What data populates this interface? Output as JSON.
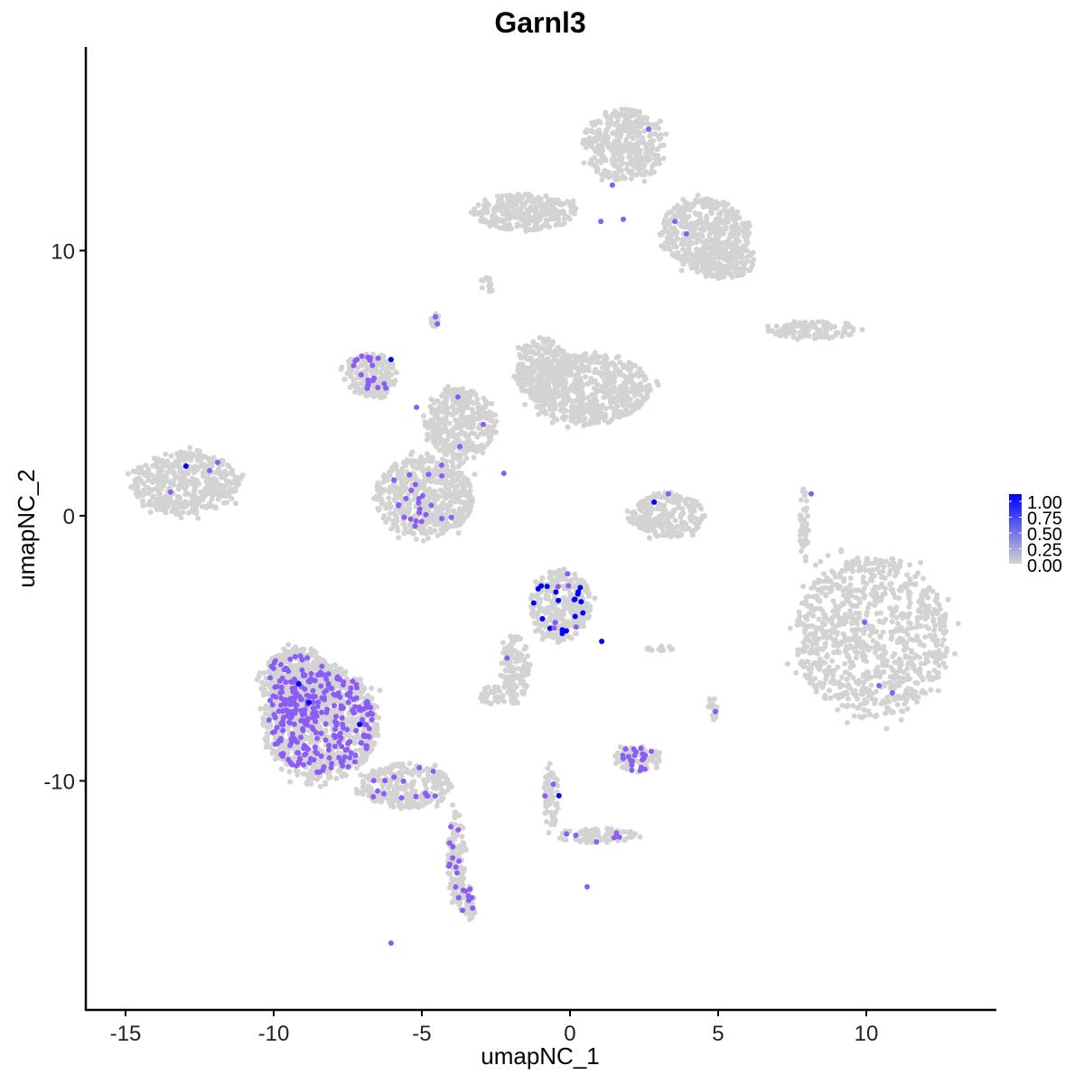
{
  "chart_data": {
    "type": "scatter",
    "title": "Garnl3",
    "xlabel": "umapNC_1",
    "ylabel": "umapNC_2",
    "xlim": [
      -16.34,
      14.39
    ],
    "ylim": [
      -18.64,
      17.68
    ],
    "x_ticks": [
      -15,
      -10,
      -5,
      0,
      5,
      10
    ],
    "x_tick_labels": [
      "-15",
      "-10",
      "-5",
      "0",
      "5",
      "10"
    ],
    "y_ticks": [
      10,
      0,
      -10
    ],
    "y_tick_labels": [
      "10",
      "0",
      "-10"
    ],
    "grid": false,
    "legend": {
      "position": "right",
      "type": "colorbar",
      "labels": [
        "1.00",
        "0.75",
        "0.50",
        "0.25",
        "0.00"
      ],
      "low_color": "#d3d3d3",
      "high_color": "#0000ff"
    },
    "colors": {
      "zero": "#d3d3d3",
      "mid": "#8b5cf6",
      "high": "#0000ff"
    },
    "clusters": [
      {
        "x": 1.8,
        "y": 14.0,
        "sx": 1.37,
        "sy": 1.36,
        "expressed": 0
      },
      {
        "x": -1.55,
        "y": 11.45,
        "sx": 1.83,
        "sy": 0.68,
        "expressed": 0
      },
      {
        "x": 4.54,
        "y": 10.6,
        "sx": 1.52,
        "sy": 1.36,
        "expressed": 0
      },
      {
        "x": 5.15,
        "y": 9.57,
        "sx": 1.07,
        "sy": 0.68,
        "expressed": 0
      },
      {
        "x": -13.0,
        "y": 1.23,
        "sx": 1.83,
        "sy": 1.19,
        "expressed": 0
      },
      {
        "x": 0.58,
        "y": 4.8,
        "sx": 2.13,
        "sy": 1.36,
        "expressed": 0
      },
      {
        "x": -0.95,
        "y": 5.49,
        "sx": 0.91,
        "sy": 1.19,
        "expressed": 0
      },
      {
        "x": -3.69,
        "y": 3.44,
        "sx": 1.22,
        "sy": 1.36,
        "expressed": 2
      },
      {
        "x": -4.91,
        "y": 0.72,
        "sx": 1.68,
        "sy": 1.53,
        "expressed": 25
      },
      {
        "x": -6.74,
        "y": 5.32,
        "sx": 0.91,
        "sy": 0.85,
        "expressed": 20
      },
      {
        "x": 3.32,
        "y": 0.03,
        "sx": 1.22,
        "sy": 0.85,
        "expressed": 0
      },
      {
        "x": 10.18,
        "y": -4.57,
        "sx": 2.59,
        "sy": 3.07,
        "expressed": 0
      },
      {
        "x": 8.2,
        "y": 7.02,
        "sx": 1.68,
        "sy": 0.34,
        "expressed": 0
      },
      {
        "x": -0.34,
        "y": -3.37,
        "sx": 1.07,
        "sy": 1.36,
        "expressed": 25,
        "high": true
      },
      {
        "x": -1.86,
        "y": -5.76,
        "sx": 0.46,
        "sy": 1.36,
        "expressed": 1
      },
      {
        "x": -2.62,
        "y": -6.78,
        "sx": 0.46,
        "sy": 0.34,
        "expressed": 0
      },
      {
        "x": -8.41,
        "y": -7.8,
        "sx": 1.98,
        "sy": 2.21,
        "expressed": 220
      },
      {
        "x": -9.18,
        "y": -6.44,
        "sx": 1.22,
        "sy": 1.53,
        "expressed": 80
      },
      {
        "x": -5.52,
        "y": -10.19,
        "sx": 1.52,
        "sy": 0.85,
        "expressed": 15
      },
      {
        "x": -3.84,
        "y": -12.91,
        "sx": 0.3,
        "sy": 1.87,
        "expressed": 12
      },
      {
        "x": -3.45,
        "y": -14.62,
        "sx": 0.3,
        "sy": 0.68,
        "expressed": 8
      },
      {
        "x": 2.26,
        "y": -9.17,
        "sx": 0.76,
        "sy": 0.51,
        "expressed": 20
      },
      {
        "x": -0.64,
        "y": -10.53,
        "sx": 0.24,
        "sy": 1.36,
        "expressed": 2
      },
      {
        "x": 0.88,
        "y": -12.06,
        "sx": 1.37,
        "sy": 0.27,
        "expressed": 6
      },
      {
        "x": 7.9,
        "y": -0.31,
        "sx": 0.15,
        "sy": 1.36,
        "expressed": 0
      },
      {
        "x": 4.85,
        "y": -7.29,
        "sx": 0.21,
        "sy": 0.41,
        "expressed": 0
      },
      {
        "x": 3.02,
        "y": -5.0,
        "sx": 0.46,
        "sy": 0.1,
        "expressed": 0
      },
      {
        "x": -2.77,
        "y": 8.72,
        "sx": 0.24,
        "sy": 0.27,
        "expressed": 0
      },
      {
        "x": -4.54,
        "y": 7.36,
        "sx": 0.15,
        "sy": 0.27,
        "expressed": 2
      }
    ],
    "expressed_points": [
      [
        2.65,
        14.58,
        0.5
      ],
      [
        1.43,
        12.47,
        0.5
      ],
      [
        1.04,
        11.1,
        0.5
      ],
      [
        1.8,
        11.18,
        0.5
      ],
      [
        3.54,
        11.1,
        0.5
      ],
      [
        3.93,
        10.63,
        0.5
      ],
      [
        -6.04,
        5.89,
        1.0
      ],
      [
        -12.96,
        1.87,
        1.0
      ],
      [
        -13.48,
        0.89,
        0.5
      ],
      [
        -12.16,
        1.7,
        0.5
      ],
      [
        -11.89,
        2.01,
        0.5
      ],
      [
        2.84,
        0.51,
        1.0
      ],
      [
        3.32,
        0.82,
        0.5
      ],
      [
        8.14,
        0.82,
        0.5
      ],
      [
        9.94,
        -4.02,
        0.5
      ],
      [
        10.43,
        -6.41,
        0.5
      ],
      [
        10.88,
        -6.68,
        0.5
      ],
      [
        4.91,
        -7.39,
        0.5
      ],
      [
        1.07,
        -4.74,
        1.0
      ],
      [
        -0.37,
        -10.56,
        1.0
      ],
      [
        -9.15,
        -6.34,
        1.0
      ],
      [
        -7.1,
        -7.87,
        1.0
      ],
      [
        -8.81,
        -7.05,
        1.0
      ],
      [
        -2.93,
        3.44,
        0.5
      ],
      [
        -2.23,
        1.6,
        0.5
      ],
      [
        -5.18,
        4.09,
        0.5
      ],
      [
        -6.04,
        -16.12,
        0.5
      ],
      [
        0.58,
        -14.0,
        0.5
      ]
    ]
  }
}
